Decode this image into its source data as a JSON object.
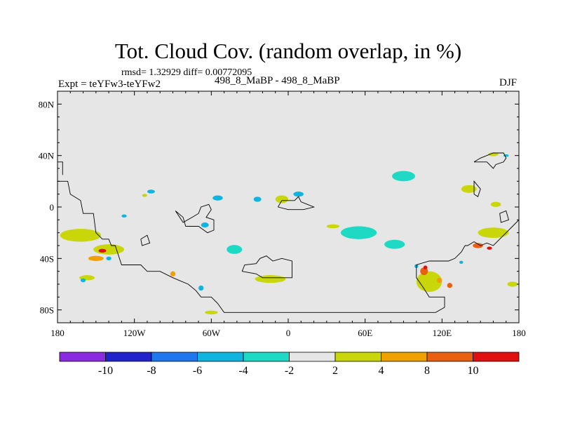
{
  "chart_data": {
    "type": "heatmap",
    "title": "Tot. Cloud Cov. (random overlap, in %)",
    "stats_line": "rmsd= 1.32929 diff= 0.00772095",
    "left_label": "Expt = teYFw3-teYFw2",
    "center_label": "498_8_MaBP - 498_8_MaBP",
    "right_label": "DJF",
    "x_ticks": [
      {
        "lon": -180,
        "label": "180"
      },
      {
        "lon": -120,
        "label": "120W"
      },
      {
        "lon": -60,
        "label": "60W"
      },
      {
        "lon": 0,
        "label": "0"
      },
      {
        "lon": 60,
        "label": "60E"
      },
      {
        "lon": 120,
        "label": "120E"
      },
      {
        "lon": 180,
        "label": "180"
      }
    ],
    "y_ticks": [
      {
        "lat": 80,
        "label": "80N"
      },
      {
        "lat": 40,
        "label": "40N"
      },
      {
        "lat": 0,
        "label": "0"
      },
      {
        "lat": -40,
        "label": "40S"
      },
      {
        "lat": -80,
        "label": "80S"
      }
    ],
    "xlim": [
      -180,
      180
    ],
    "ylim": [
      -90,
      90
    ],
    "colorbar": {
      "levels": [
        "-10",
        "-8",
        "-6",
        "-4",
        "-2",
        "2",
        "4",
        "8",
        "10"
      ],
      "colors": [
        "#8a2be2",
        "#2222cc",
        "#1e77ee",
        "#10b4e0",
        "#1ed9c4",
        "#e6e6e6",
        "#c8d60a",
        "#f0a000",
        "#e86010",
        "#e01010"
      ]
    },
    "background_color": "#e6e6e6",
    "regions": [
      {
        "lon": -107,
        "lat": 12,
        "rx": 3,
        "ry": 1.5,
        "bin": 3
      },
      {
        "lon": -112,
        "lat": 9,
        "rx": 2,
        "ry": 1.2,
        "bin": 6
      },
      {
        "lon": -55,
        "lat": 7,
        "rx": 4,
        "ry": 2,
        "bin": 3
      },
      {
        "lon": -65,
        "lat": -14,
        "rx": 3,
        "ry": 2,
        "bin": 3
      },
      {
        "lon": -42,
        "lat": -33,
        "rx": 6,
        "ry": 3.5,
        "bin": 4
      },
      {
        "lon": 90,
        "lat": 24,
        "rx": 9,
        "ry": 4,
        "bin": 4
      },
      {
        "lon": 55,
        "lat": -20,
        "rx": 14,
        "ry": 5,
        "bin": 4
      },
      {
        "lon": 83,
        "lat": -29,
        "rx": 8,
        "ry": 3.5,
        "bin": 4
      },
      {
        "lon": -24,
        "lat": 6,
        "rx": 3,
        "ry": 2,
        "bin": 3
      },
      {
        "lon": 8,
        "lat": 10,
        "rx": 4,
        "ry": 2,
        "bin": 3
      },
      {
        "lon": -5,
        "lat": 6,
        "rx": 5,
        "ry": 3,
        "bin": 6
      },
      {
        "lon": 35,
        "lat": -15,
        "rx": 5,
        "ry": 1.5,
        "bin": 6
      },
      {
        "lon": -14,
        "lat": -56,
        "rx": 12,
        "ry": 3,
        "bin": 6
      },
      {
        "lon": -162,
        "lat": -22,
        "rx": 16,
        "ry": 5,
        "bin": 6
      },
      {
        "lon": -140,
        "lat": -33,
        "rx": 12,
        "ry": 4,
        "bin": 6
      },
      {
        "lon": -150,
        "lat": -40,
        "rx": 6,
        "ry": 2,
        "bin": 7
      },
      {
        "lon": -145,
        "lat": -34,
        "rx": 3,
        "ry": 1.5,
        "bin": 9
      },
      {
        "lon": -157,
        "lat": -55,
        "rx": 6,
        "ry": 2,
        "bin": 6
      },
      {
        "lon": -60,
        "lat": -82,
        "rx": 5,
        "ry": 1.5,
        "bin": 6
      },
      {
        "lon": 141,
        "lat": 14,
        "rx": 6,
        "ry": 3,
        "bin": 6
      },
      {
        "lon": 162,
        "lat": 2,
        "rx": 4,
        "ry": 2,
        "bin": 6
      },
      {
        "lon": 160,
        "lat": -20,
        "rx": 12,
        "ry": 4,
        "bin": 6
      },
      {
        "lon": 148,
        "lat": -30,
        "rx": 4,
        "ry": 2,
        "bin": 8
      },
      {
        "lon": 157,
        "lat": -32,
        "rx": 2,
        "ry": 1.2,
        "bin": 9
      },
      {
        "lon": 110,
        "lat": -58,
        "rx": 10,
        "ry": 8,
        "bin": 6
      },
      {
        "lon": 106,
        "lat": -50,
        "rx": 3,
        "ry": 3,
        "bin": 8
      },
      {
        "lon": 107,
        "lat": -47,
        "rx": 1.5,
        "ry": 1.5,
        "bin": 9
      },
      {
        "lon": 118,
        "lat": -57,
        "rx": 2,
        "ry": 2,
        "bin": 7
      },
      {
        "lon": 126,
        "lat": -61,
        "rx": 2,
        "ry": 2,
        "bin": 8
      },
      {
        "lon": 175,
        "lat": -60,
        "rx": 4,
        "ry": 2,
        "bin": 6
      },
      {
        "lon": 160,
        "lat": 41,
        "rx": 4,
        "ry": 1.5,
        "bin": 6
      },
      {
        "lon": 170,
        "lat": 40,
        "rx": 2,
        "ry": 1,
        "bin": 3
      },
      {
        "lon": -90,
        "lat": -52,
        "rx": 2,
        "ry": 2,
        "bin": 7
      },
      {
        "lon": -68,
        "lat": -63,
        "rx": 2,
        "ry": 2,
        "bin": 3
      },
      {
        "lon": -160,
        "lat": -57,
        "rx": 2,
        "ry": 1.5,
        "bin": 3
      },
      {
        "lon": -140,
        "lat": -40,
        "rx": 2,
        "ry": 1.5,
        "bin": 3
      },
      {
        "lon": -128,
        "lat": -7,
        "rx": 2,
        "ry": 1.2,
        "bin": 3
      },
      {
        "lon": 100,
        "lat": -46,
        "rx": 1.5,
        "ry": 1.5,
        "bin": 3
      },
      {
        "lon": 135,
        "lat": -43,
        "rx": 1.5,
        "ry": 1.2,
        "bin": 3
      }
    ],
    "coastlines": [
      [
        [
          -180,
          20
        ],
        [
          -172,
          20
        ],
        [
          -170,
          10
        ],
        [
          -162,
          5
        ],
        [
          -160,
          -5
        ],
        [
          -152,
          -5
        ],
        [
          -150,
          -20
        ],
        [
          -145,
          -25
        ],
        [
          -140,
          -25
        ],
        [
          -138,
          -30
        ],
        [
          -135,
          -30
        ],
        [
          -130,
          -45
        ],
        [
          -115,
          -45
        ],
        [
          -110,
          -50
        ],
        [
          -100,
          -50
        ],
        [
          -90,
          -55
        ],
        [
          -78,
          -60
        ],
        [
          -72,
          -65
        ],
        [
          -68,
          -70
        ],
        [
          -60,
          -70
        ],
        [
          -55,
          -75
        ],
        [
          -50,
          -82
        ],
        [
          115,
          -82
        ],
        [
          122,
          -78
        ],
        [
          122,
          -70
        ],
        [
          110,
          -70
        ],
        [
          105,
          -62
        ],
        [
          100,
          -55
        ],
        [
          100,
          -45
        ],
        [
          110,
          -42
        ],
        [
          125,
          -42
        ],
        [
          130,
          -40
        ],
        [
          135,
          -35
        ],
        [
          138,
          -30
        ],
        [
          140,
          -30
        ],
        [
          145,
          -27
        ],
        [
          150,
          -30
        ],
        [
          155,
          -28
        ],
        [
          160,
          -30
        ],
        [
          165,
          -25
        ],
        [
          170,
          -20
        ],
        [
          175,
          -15
        ],
        [
          180,
          -10
        ]
      ],
      [
        [
          -180,
          35
        ],
        [
          -176,
          35
        ],
        [
          -176,
          25
        ]
      ],
      [
        [
          -88,
          -3
        ],
        [
          -82,
          -8
        ],
        [
          -80,
          -15
        ],
        [
          -70,
          -15
        ],
        [
          -63,
          -20
        ],
        [
          -58,
          -18
        ],
        [
          -58,
          -10
        ],
        [
          -64,
          -8
        ],
        [
          -60,
          -2
        ],
        [
          -62,
          2
        ],
        [
          -68,
          0
        ],
        [
          -70,
          -5
        ],
        [
          -75,
          -8
        ],
        [
          -82,
          -12
        ],
        [
          -88,
          -3
        ]
      ],
      [
        [
          -36,
          -50
        ],
        [
          -34,
          -45
        ],
        [
          -25,
          -44
        ],
        [
          -22,
          -40
        ],
        [
          -17,
          -38
        ],
        [
          -12,
          -42
        ],
        [
          -5,
          -40
        ],
        [
          3,
          -42
        ],
        [
          3,
          -55
        ],
        [
          -20,
          -55
        ],
        [
          -25,
          -52
        ],
        [
          -36,
          -50
        ]
      ],
      [
        [
          -8,
          0
        ],
        [
          -5,
          5
        ],
        [
          5,
          5
        ],
        [
          8,
          8
        ],
        [
          10,
          4
        ],
        [
          15,
          2
        ],
        [
          20,
          0
        ],
        [
          12,
          -2
        ],
        [
          0,
          -2
        ],
        [
          -8,
          0
        ]
      ],
      [
        [
          145,
          10
        ],
        [
          148,
          8
        ],
        [
          150,
          14
        ],
        [
          145,
          20
        ],
        [
          145,
          10
        ]
      ],
      [
        [
          145,
          35
        ],
        [
          155,
          35
        ],
        [
          160,
          30
        ],
        [
          162,
          33
        ],
        [
          168,
          35
        ],
        [
          170,
          38
        ],
        [
          168,
          42
        ],
        [
          160,
          42
        ],
        [
          150,
          38
        ],
        [
          145,
          35
        ]
      ],
      [
        [
          165,
          -5
        ],
        [
          170,
          -3
        ],
        [
          172,
          -10
        ],
        [
          166,
          -12
        ],
        [
          165,
          -5
        ]
      ],
      [
        [
          -115,
          -25
        ],
        [
          -110,
          -22
        ],
        [
          -108,
          -28
        ],
        [
          -114,
          -30
        ],
        [
          -115,
          -25
        ]
      ]
    ]
  }
}
